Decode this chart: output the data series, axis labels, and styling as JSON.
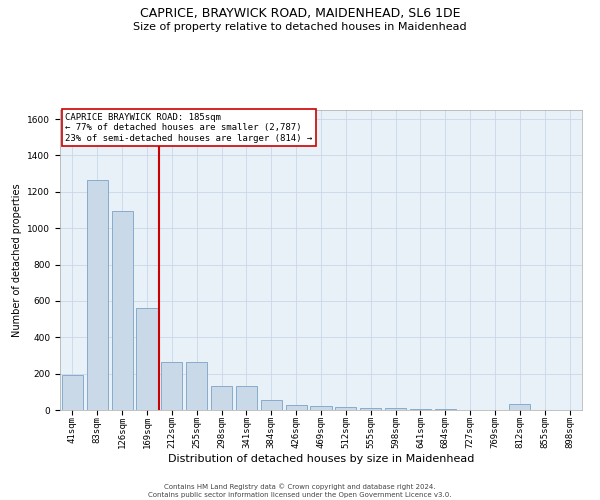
{
  "title": "CAPRICE, BRAYWICK ROAD, MAIDENHEAD, SL6 1DE",
  "subtitle": "Size of property relative to detached houses in Maidenhead",
  "xlabel": "Distribution of detached houses by size in Maidenhead",
  "ylabel": "Number of detached properties",
  "footer_line1": "Contains HM Land Registry data © Crown copyright and database right 2024.",
  "footer_line2": "Contains public sector information licensed under the Open Government Licence v3.0.",
  "bar_labels": [
    "41sqm",
    "83sqm",
    "126sqm",
    "169sqm",
    "212sqm",
    "255sqm",
    "298sqm",
    "341sqm",
    "384sqm",
    "426sqm",
    "469sqm",
    "512sqm",
    "555sqm",
    "598sqm",
    "641sqm",
    "684sqm",
    "727sqm",
    "769sqm",
    "812sqm",
    "855sqm",
    "898sqm"
  ],
  "bar_values": [
    195,
    1265,
    1095,
    560,
    265,
    265,
    130,
    130,
    55,
    30,
    20,
    15,
    10,
    10,
    5,
    5,
    0,
    0,
    35,
    0,
    0
  ],
  "bar_color": "#c9d9e8",
  "bar_edge_color": "#7ba3c8",
  "vline_x_index": 3.5,
  "vline_color": "#cc0000",
  "annotation_text": "CAPRICE BRAYWICK ROAD: 185sqm\n← 77% of detached houses are smaller (2,787)\n23% of semi-detached houses are larger (814) →",
  "annotation_box_color": "#ffffff",
  "annotation_box_edge_color": "#cc0000",
  "ylim": [
    0,
    1650
  ],
  "yticks": [
    0,
    200,
    400,
    600,
    800,
    1000,
    1200,
    1400,
    1600
  ],
  "grid_color": "#c8d8e8",
  "bg_color": "#e8f0f8",
  "title_fontsize": 9,
  "subtitle_fontsize": 8,
  "xlabel_fontsize": 8,
  "ylabel_fontsize": 7,
  "tick_fontsize": 6.5,
  "footer_fontsize": 5,
  "annotation_fontsize": 6.5
}
